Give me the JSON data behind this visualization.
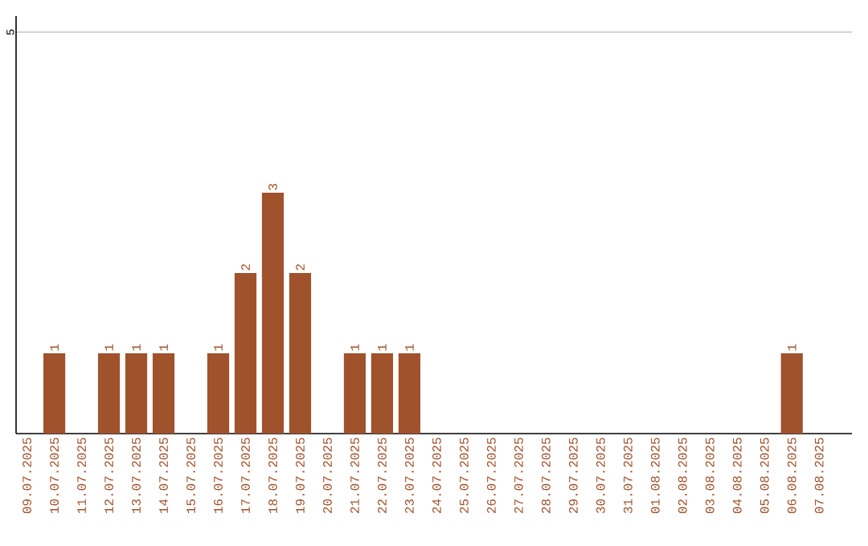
{
  "chart_data": {
    "type": "bar",
    "categories": [
      "09.07.2025",
      "10.07.2025",
      "11.07.2025",
      "12.07.2025",
      "13.07.2025",
      "14.07.2025",
      "15.07.2025",
      "16.07.2025",
      "17.07.2025",
      "18.07.2025",
      "19.07.2025",
      "20.07.2025",
      "21.07.2025",
      "22.07.2025",
      "23.07.2025",
      "24.07.2025",
      "25.07.2025",
      "26.07.2025",
      "27.07.2025",
      "28.07.2025",
      "29.07.2025",
      "30.07.2025",
      "31.07.2025",
      "01.08.2025",
      "02.08.2025",
      "03.08.2025",
      "04.08.2025",
      "05.08.2025",
      "06.08.2025",
      "07.08.2025"
    ],
    "values": [
      0,
      1,
      0,
      1,
      1,
      1,
      0,
      1,
      2,
      3,
      2,
      0,
      1,
      1,
      1,
      0,
      0,
      0,
      0,
      0,
      0,
      0,
      0,
      0,
      0,
      0,
      0,
      0,
      1,
      0
    ],
    "value_labels": [
      null,
      "1",
      null,
      "1",
      "1",
      "1",
      null,
      "1",
      "2",
      "3",
      "2",
      null,
      "1",
      "1",
      "1",
      null,
      null,
      null,
      null,
      null,
      null,
      null,
      null,
      null,
      null,
      null,
      null,
      null,
      "1",
      null
    ],
    "color": "#a0522d",
    "ylim": [
      0,
      5.2
    ],
    "yticks": [
      5
    ],
    "grid": "y"
  }
}
